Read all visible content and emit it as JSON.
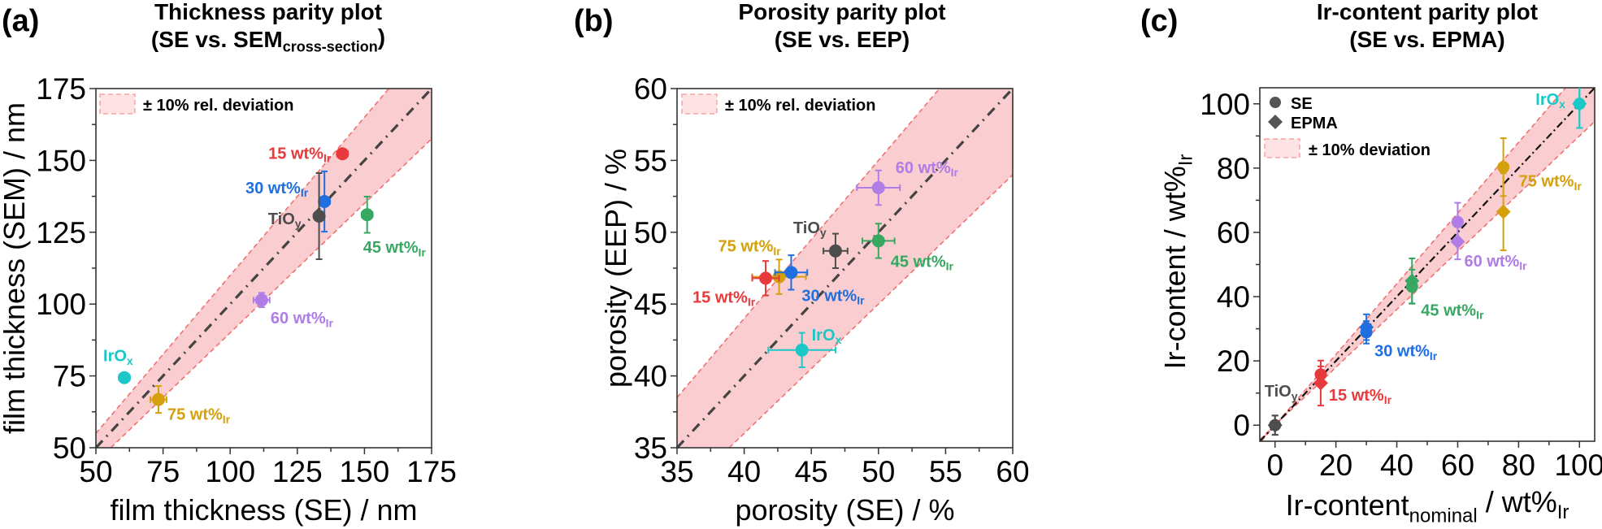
{
  "chart_data": [
    {
      "type": "scatter",
      "panel_label": "(a)",
      "title": "Thickness parity plot",
      "subtitle": "(SE vs. SEM",
      "subtitle_sub": "cross-section",
      "subtitle_end": ")",
      "xlabel": "film thickness (SE) / nm",
      "ylabel": "film thickness (SEM) / nm",
      "xlim": [
        50,
        175
      ],
      "ylim": [
        50,
        175
      ],
      "xticks": [
        50,
        75,
        100,
        125,
        150,
        175
      ],
      "yticks": [
        50,
        75,
        100,
        125,
        150,
        175
      ],
      "minor_step": 12.5,
      "legend": {
        "band_label": "± 10% rel. deviation",
        "position": "top-left"
      },
      "band_rel_deviation": 0.1,
      "parity_line": "y = x",
      "points": [
        {
          "label": "15 wt%",
          "label_sub": "Ir",
          "color": "#e8393c",
          "x": 141.8,
          "y": 152.3,
          "xerr": 2.0,
          "yerr": 1.2
        },
        {
          "label": "30 wt%",
          "label_sub": "Ir",
          "color": "#1f6fe0",
          "x": 135.1,
          "y": 135.7,
          "xerr": 2.0,
          "yerr": 10.5
        },
        {
          "label": "TiO",
          "label_sub": "y",
          "color": "#4d4d4d",
          "x": 133.1,
          "y": 130.6,
          "xerr": 0.5,
          "yerr": 15.0
        },
        {
          "label": "45 wt%",
          "label_sub": "Ir",
          "color": "#36a862",
          "x": 151.0,
          "y": 131.1,
          "xerr": 2.0,
          "yerr": 6.3
        },
        {
          "label": "60 wt%",
          "label_sub": "Ir",
          "color": "#b07ce6",
          "x": 111.7,
          "y": 101.4,
          "xerr": 3.0,
          "yerr": 2.5
        },
        {
          "label": "IrO",
          "label_sub": "x",
          "color": "#1cc7c7",
          "x": 60.6,
          "y": 74.4,
          "xerr": 2.0,
          "yerr": 0.8
        },
        {
          "label": "75 wt%",
          "label_sub": "Ir",
          "color": "#d4a00c",
          "x": 73.3,
          "y": 66.8,
          "xerr": 3.0,
          "yerr": 4.7
        }
      ]
    },
    {
      "type": "scatter",
      "panel_label": "(b)",
      "title": "Porosity parity plot",
      "subtitle": "(SE vs. EEP)",
      "subtitle_sub": "",
      "subtitle_end": "",
      "xlabel": "porosity (SE) / %",
      "ylabel": "porosity (EEP) / %",
      "xlim": [
        35,
        60
      ],
      "ylim": [
        35,
        60
      ],
      "xticks": [
        35,
        40,
        45,
        50,
        55,
        60
      ],
      "yticks": [
        35,
        40,
        45,
        50,
        55,
        60
      ],
      "minor_step": 2.5,
      "legend": {
        "band_label": "± 10% rel. deviation",
        "position": "top-left"
      },
      "band_rel_deviation": 0.1,
      "parity_line": "y = x",
      "points": [
        {
          "label": "60 wt%",
          "label_sub": "Ir",
          "color": "#b07ce6",
          "x": 50.0,
          "y": 53.1,
          "xerr": 1.6,
          "yerr": 1.2
        },
        {
          "label": "TiO",
          "label_sub": "y",
          "color": "#4d4d4d",
          "x": 46.8,
          "y": 48.7,
          "xerr": 0.9,
          "yerr": 1.2
        },
        {
          "label": "45 wt%",
          "label_sub": "Ir",
          "color": "#36a862",
          "x": 50.0,
          "y": 49.4,
          "xerr": 1.2,
          "yerr": 1.2
        },
        {
          "label": "75 wt%",
          "label_sub": "Ir",
          "color": "#d4a00c",
          "x": 42.6,
          "y": 46.9,
          "xerr": 2.0,
          "yerr": 1.2
        },
        {
          "label": "15 wt%",
          "label_sub": "Ir",
          "color": "#e8393c",
          "x": 41.6,
          "y": 46.8,
          "xerr": 1.0,
          "yerr": 1.2
        },
        {
          "label": "30 wt%",
          "label_sub": "Ir",
          "color": "#1f6fe0",
          "x": 43.5,
          "y": 47.2,
          "xerr": 1.2,
          "yerr": 1.2
        },
        {
          "label": "IrO",
          "label_sub": "x",
          "color": "#1cc7c7",
          "x": 44.3,
          "y": 41.8,
          "xerr": 2.5,
          "yerr": 1.2
        }
      ]
    },
    {
      "type": "scatter",
      "panel_label": "(c)",
      "title": "Ir-content parity plot",
      "subtitle": "(SE vs. EPMA)",
      "subtitle_sub": "",
      "subtitle_end": "",
      "xlabel": "Ir-content",
      "xlabel_sub": "nominal",
      "xlabel_end": " / wt%",
      "xlabel_end_sub": "Ir",
      "ylabel": "Ir-content / wt%",
      "ylabel_sub": "Ir",
      "xlim": [
        -5,
        105
      ],
      "ylim": [
        -5,
        105
      ],
      "xticks": [
        0,
        20,
        40,
        60,
        80,
        100
      ],
      "yticks": [
        0,
        20,
        40,
        60,
        80,
        100
      ],
      "minor_step": 10,
      "legend": {
        "series_labels": [
          "SE",
          "EPMA"
        ],
        "band_label": "± 10% deviation",
        "position": "top-left"
      },
      "band_rel_deviation": 0.1,
      "parity_line": "y = x",
      "series": [
        {
          "name": "SE",
          "marker": "circle",
          "points": [
            {
              "x": 0,
              "y": 0,
              "yerr": 3.0,
              "color": "#4d4d4d"
            },
            {
              "x": 15,
              "y": 15.8,
              "yerr": 2.5,
              "color": "#e8393c"
            },
            {
              "x": 30,
              "y": 28.9,
              "yerr": 3.5,
              "color": "#1f6fe0"
            },
            {
              "x": 45,
              "y": 43.1,
              "yerr": 5.3,
              "color": "#36a862"
            },
            {
              "x": 60,
              "y": 63.2,
              "yerr": 6.0,
              "color": "#b07ce6"
            },
            {
              "x": 75,
              "y": 80.3,
              "yerr": 9.0,
              "color": "#d4a00c"
            },
            {
              "x": 100,
              "y": 100,
              "yerr": 7.5,
              "color": "#1cc7c7"
            }
          ]
        },
        {
          "name": "EPMA",
          "marker": "diamond",
          "points": [
            {
              "x": 0,
              "y": 0,
              "yerr": 3.0,
              "color": "#4d4d4d"
            },
            {
              "x": 15,
              "y": 13.1,
              "yerr": 7.0,
              "color": "#e8393c"
            },
            {
              "x": 30,
              "y": 30.5,
              "yerr": 4.0,
              "color": "#1f6fe0"
            },
            {
              "x": 45,
              "y": 44.9,
              "yerr": 7.0,
              "color": "#36a862"
            },
            {
              "x": 60,
              "y": 57.1,
              "yerr": 5.5,
              "color": "#b07ce6"
            },
            {
              "x": 75,
              "y": 66.4,
              "yerr": 12.0,
              "color": "#d4a00c"
            },
            {
              "x": 100,
              "y": 100,
              "yerr": 7.5,
              "color": "#1cc7c7"
            }
          ]
        }
      ],
      "labels": [
        {
          "label": "TiO",
          "label_sub": "y",
          "color": "#4d4d4d",
          "x": 0
        },
        {
          "label": "15 wt%",
          "label_sub": "Ir",
          "color": "#e8393c",
          "x": 15
        },
        {
          "label": "30 wt%",
          "label_sub": "Ir",
          "color": "#1f6fe0",
          "x": 30
        },
        {
          "label": "45 wt%",
          "label_sub": "Ir",
          "color": "#36a862",
          "x": 45
        },
        {
          "label": "60 wt%",
          "label_sub": "Ir",
          "color": "#b07ce6",
          "x": 60
        },
        {
          "label": "75 wt%",
          "label_sub": "Ir",
          "color": "#d4a00c",
          "x": 75
        },
        {
          "label": "IrO",
          "label_sub": "x",
          "color": "#1cc7c7",
          "x": 100
        }
      ]
    }
  ],
  "colors": {
    "band_fill": "#f9c9cb",
    "band_edge": "#f07272",
    "parity_line": "#444444",
    "axis": "#333333"
  }
}
